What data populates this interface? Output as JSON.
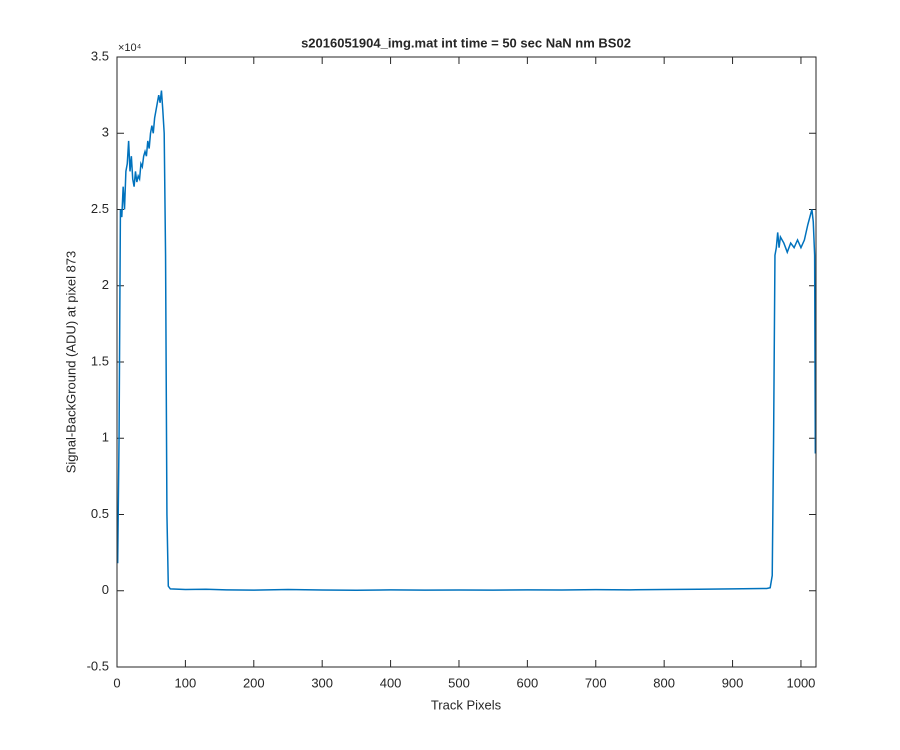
{
  "chart_data": {
    "type": "line",
    "title": "s2016051904_img.mat int time = 50 sec  NaN nm BS02",
    "x_label": "Track Pixels",
    "y_label": "Signal-BackGround (ADU) at pixel 873",
    "y_multiplier": "×10⁴",
    "xlim": [
      0,
      1022
    ],
    "ylim": [
      -0.5,
      3.5
    ],
    "xticks": [
      0,
      100,
      200,
      300,
      400,
      500,
      600,
      700,
      800,
      900,
      1000
    ],
    "yticks": [
      -0.5,
      0,
      0.5,
      1,
      1.5,
      2,
      2.5,
      3,
      3.5
    ],
    "grid": false,
    "x": [
      1,
      3,
      5,
      7,
      9,
      11,
      13,
      15,
      17,
      19,
      21,
      23,
      25,
      27,
      29,
      31,
      33,
      35,
      37,
      39,
      41,
      43,
      45,
      47,
      49,
      51,
      53,
      55,
      57,
      59,
      61,
      63,
      65,
      67,
      69,
      71,
      73,
      75,
      78,
      100,
      130,
      160,
      200,
      250,
      300,
      350,
      400,
      450,
      500,
      550,
      600,
      650,
      700,
      750,
      800,
      850,
      900,
      950,
      955,
      958,
      960,
      962,
      964,
      966,
      968,
      970,
      975,
      980,
      985,
      990,
      995,
      1000,
      1005,
      1010,
      1013,
      1016,
      1018,
      1020,
      1021
    ],
    "series": [
      {
        "color": "#0072bd",
        "values": [
          0.18,
          1.0,
          2.5,
          2.45,
          2.65,
          2.5,
          2.75,
          2.8,
          2.95,
          2.75,
          2.85,
          2.7,
          2.65,
          2.75,
          2.68,
          2.72,
          2.7,
          2.8,
          2.78,
          2.85,
          2.88,
          2.85,
          2.95,
          2.9,
          3.0,
          3.05,
          3.0,
          3.1,
          3.15,
          3.2,
          3.25,
          3.2,
          3.28,
          3.15,
          3.0,
          2.2,
          0.5,
          0.03,
          0.012,
          0.008,
          0.01,
          0.006,
          0.004,
          0.008,
          0.005,
          0.003,
          0.006,
          0.004,
          0.005,
          0.004,
          0.006,
          0.005,
          0.007,
          0.006,
          0.008,
          0.01,
          0.012,
          0.015,
          0.02,
          0.1,
          1.0,
          2.2,
          2.25,
          2.35,
          2.25,
          2.32,
          2.28,
          2.22,
          2.28,
          2.25,
          2.3,
          2.25,
          2.3,
          2.4,
          2.45,
          2.5,
          2.42,
          2.2,
          0.9
        ]
      }
    ]
  }
}
